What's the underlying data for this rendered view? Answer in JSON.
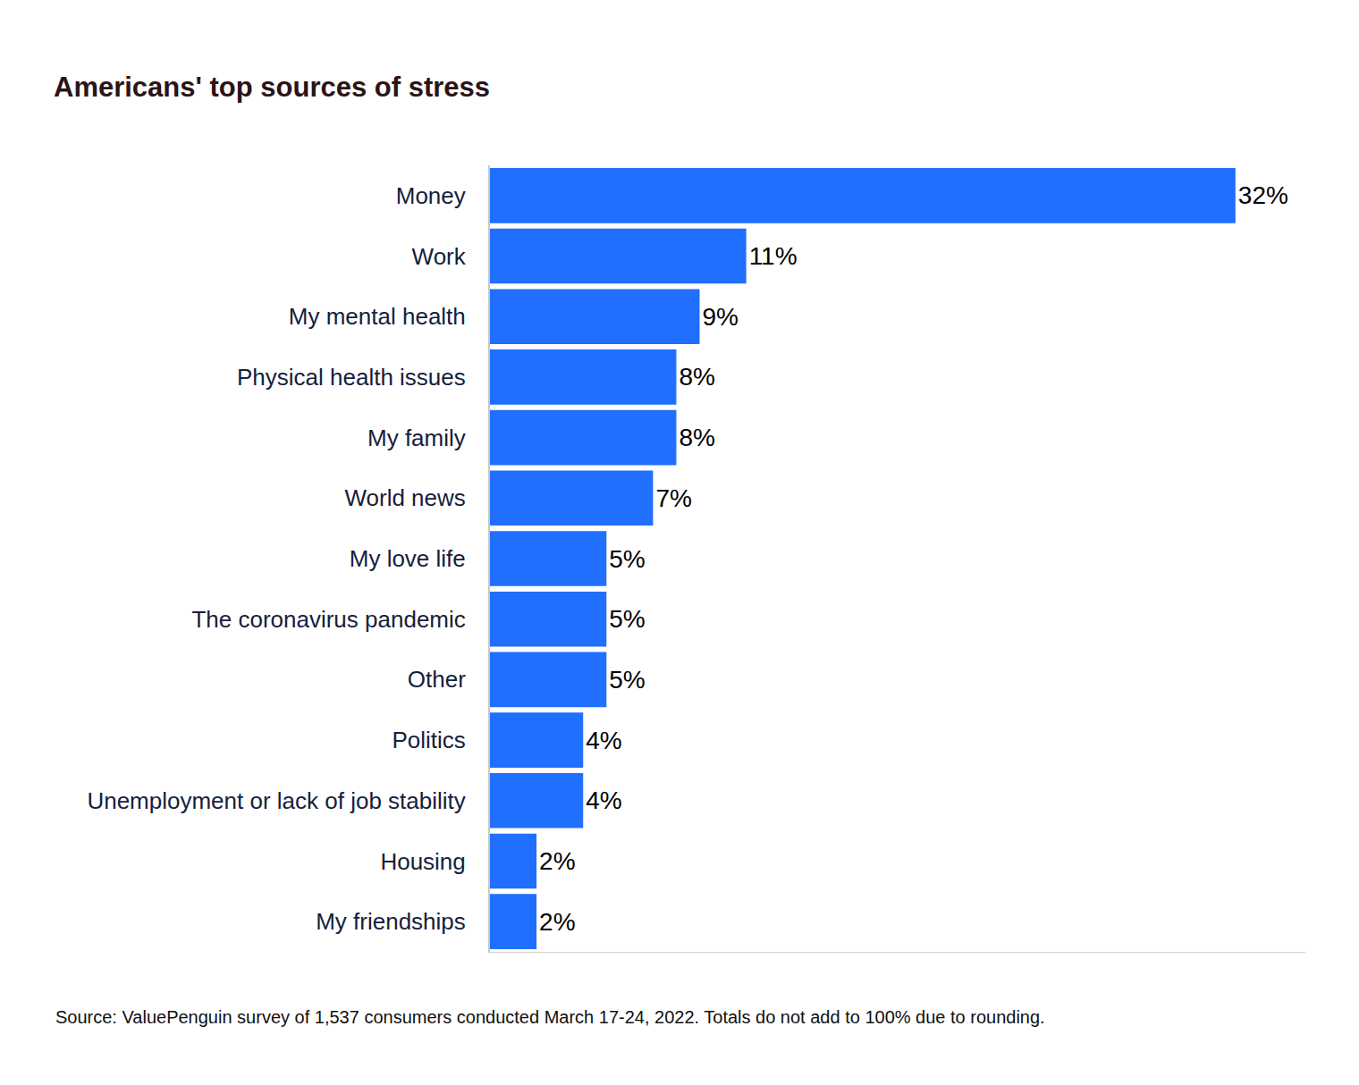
{
  "chart_data": {
    "type": "bar",
    "orientation": "horizontal",
    "title": "Americans' top sources of stress",
    "categories": [
      "Money",
      "Work",
      "My mental health",
      "Physical health issues",
      "My family",
      "World news",
      "My love life",
      "The coronavirus pandemic",
      "Other",
      "Politics",
      "Unemployment or lack of job stability",
      "Housing",
      "My friendships"
    ],
    "values": [
      32,
      11,
      9,
      8,
      8,
      7,
      5,
      5,
      5,
      4,
      4,
      2,
      2
    ],
    "value_labels": [
      "32%",
      "11%",
      "9%",
      "8%",
      "8%",
      "7%",
      "5%",
      "5%",
      "5%",
      "4%",
      "4%",
      "2%",
      "2%"
    ],
    "color": "#206fff",
    "data_labels": true,
    "xlim": [
      0,
      35
    ],
    "xticks": [],
    "grid": false,
    "tick_labels": "y",
    "source": "Source: ValuePenguin survey of 1,537 consumers conducted March 17-24, 2022. Totals do not add to 100% due to rounding."
  }
}
